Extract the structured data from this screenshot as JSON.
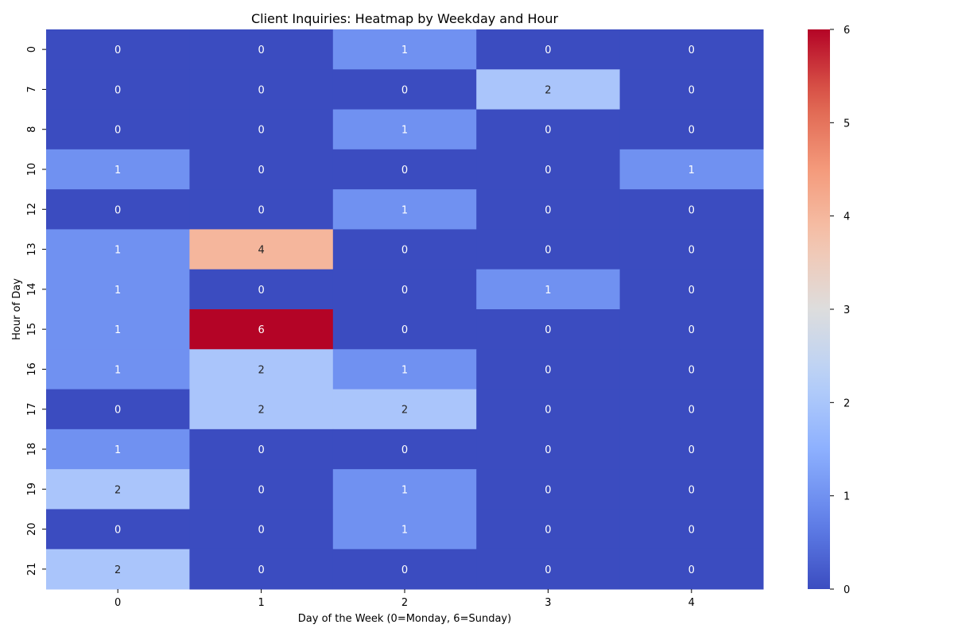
{
  "chart_data": {
    "type": "heatmap",
    "title": "Client Inquiries: Heatmap by Weekday and Hour",
    "xlabel": "Day of the Week (0=Monday, 6=Sunday)",
    "ylabel": "Hour of Day",
    "x_categories": [
      "0",
      "1",
      "2",
      "3",
      "4"
    ],
    "y_categories": [
      "0",
      "7",
      "8",
      "10",
      "12",
      "13",
      "14",
      "15",
      "16",
      "17",
      "18",
      "19",
      "20",
      "21"
    ],
    "values": [
      [
        0,
        0,
        1,
        0,
        0
      ],
      [
        0,
        0,
        0,
        2,
        0
      ],
      [
        0,
        0,
        1,
        0,
        0
      ],
      [
        1,
        0,
        0,
        0,
        1
      ],
      [
        0,
        0,
        1,
        0,
        0
      ],
      [
        1,
        4,
        0,
        0,
        0
      ],
      [
        1,
        0,
        0,
        1,
        0
      ],
      [
        1,
        6,
        0,
        0,
        0
      ],
      [
        1,
        2,
        1,
        0,
        0
      ],
      [
        0,
        2,
        2,
        0,
        0
      ],
      [
        1,
        0,
        0,
        0,
        0
      ],
      [
        2,
        0,
        1,
        0,
        0
      ],
      [
        0,
        0,
        1,
        0,
        0
      ],
      [
        2,
        0,
        0,
        0,
        0
      ]
    ],
    "colormap": "coolwarm",
    "vmin": 0,
    "vmax": 6,
    "colorbar_ticks": [
      "0",
      "1",
      "2",
      "3",
      "4",
      "5",
      "6"
    ],
    "annotations": true,
    "grid": false
  }
}
